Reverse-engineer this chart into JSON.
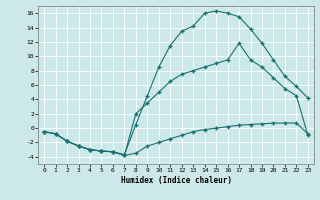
{
  "background_color": "#cce8e8",
  "grid_color": "#b8d8d8",
  "line_color": "#1a7070",
  "xlim": [
    -0.5,
    23.5
  ],
  "ylim": [
    -5,
    17
  ],
  "xticks": [
    0,
    1,
    2,
    3,
    4,
    5,
    6,
    7,
    8,
    9,
    10,
    11,
    12,
    13,
    14,
    15,
    16,
    17,
    18,
    19,
    20,
    21,
    22,
    23
  ],
  "yticks": [
    -4,
    -2,
    0,
    2,
    4,
    6,
    8,
    10,
    12,
    14,
    16
  ],
  "xlabel": "Humidex (Indice chaleur)",
  "curve_top_x": [
    0,
    1,
    2,
    3,
    4,
    5,
    6,
    7,
    8,
    9,
    10,
    11,
    12,
    13,
    14,
    15,
    16,
    17,
    18,
    19,
    20,
    21,
    22,
    23
  ],
  "curve_top_y": [
    -0.5,
    -0.8,
    -1.8,
    -2.5,
    -3.0,
    -3.2,
    -3.3,
    -3.7,
    0.5,
    4.5,
    8.5,
    11.5,
    13.5,
    14.2,
    16.0,
    16.3,
    16.0,
    15.5,
    13.8,
    11.8,
    9.5,
    7.2,
    5.8,
    4.2
  ],
  "curve_mid_x": [
    0,
    1,
    2,
    3,
    4,
    5,
    6,
    7,
    8,
    9,
    10,
    11,
    12,
    13,
    14,
    15,
    16,
    17,
    18,
    19,
    20,
    21,
    22,
    23
  ],
  "curve_mid_y": [
    -0.5,
    -0.8,
    -1.8,
    -2.5,
    -3.0,
    -3.2,
    -3.3,
    -3.8,
    2.0,
    3.5,
    5.0,
    6.5,
    7.5,
    8.0,
    8.5,
    9.0,
    9.5,
    11.8,
    9.5,
    8.5,
    7.0,
    5.5,
    4.5,
    -1.0
  ],
  "curve_bot_x": [
    0,
    1,
    2,
    3,
    4,
    5,
    6,
    7,
    8,
    9,
    10,
    11,
    12,
    13,
    14,
    15,
    16,
    17,
    18,
    19,
    20,
    21,
    22,
    23
  ],
  "curve_bot_y": [
    -0.5,
    -0.8,
    -1.8,
    -2.5,
    -3.0,
    -3.2,
    -3.3,
    -3.8,
    -3.5,
    -2.5,
    -2.0,
    -1.5,
    -1.0,
    -0.5,
    -0.2,
    0.0,
    0.2,
    0.4,
    0.5,
    0.6,
    0.7,
    0.7,
    0.7,
    -0.8
  ]
}
